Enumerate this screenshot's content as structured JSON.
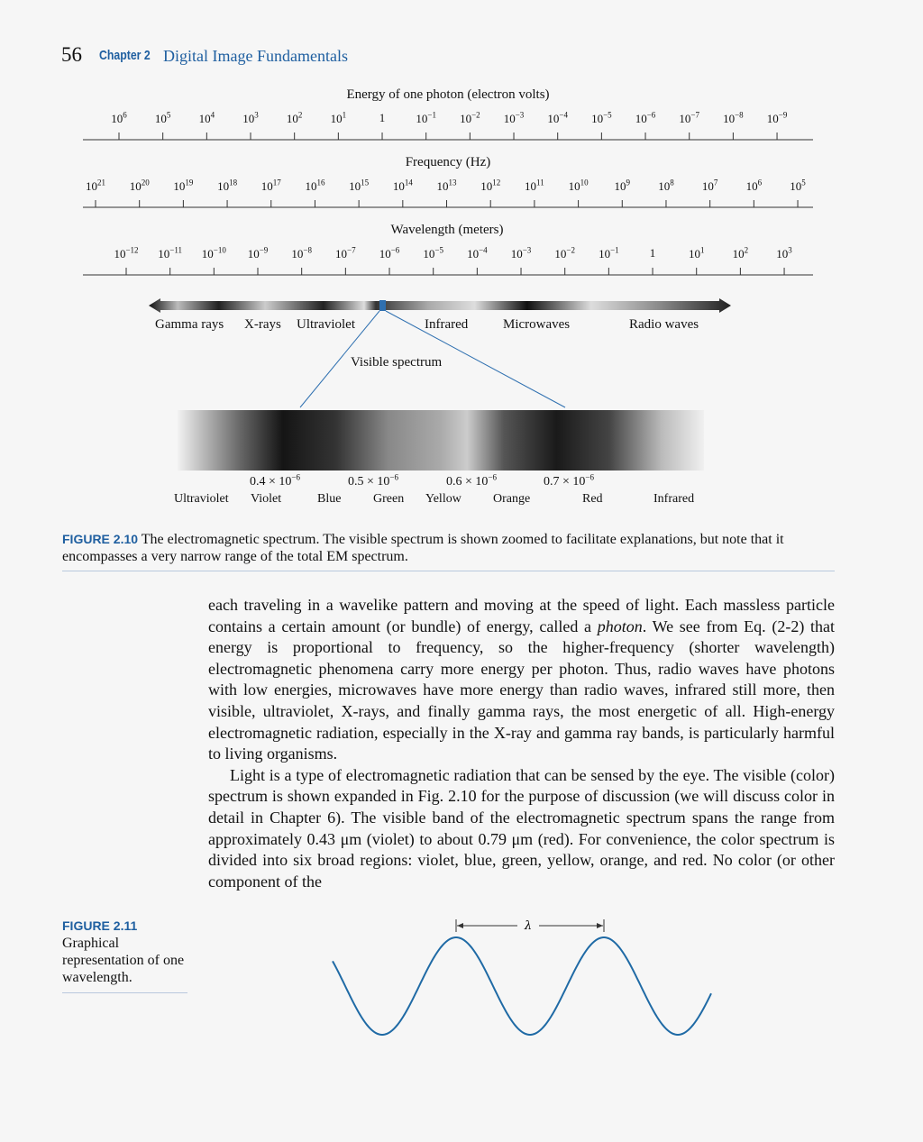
{
  "header": {
    "page_number": "56",
    "chapter": "Chapter 2",
    "title": "Digital Image Fundamentals"
  },
  "figure_2_10": {
    "energy": {
      "title": "Energy of one photon (electron volts)",
      "ticks": [
        "10^6",
        "10^5",
        "10^4",
        "10^3",
        "10^2",
        "10^1",
        "1",
        "10^−1",
        "10^−2",
        "10^−3",
        "10^−4",
        "10^−5",
        "10^−6",
        "10^−7",
        "10^−8",
        "10^−9"
      ]
    },
    "frequency": {
      "title": "Frequency (Hz)",
      "ticks": [
        "10^21",
        "10^20",
        "10^19",
        "10^18",
        "10^17",
        "10^16",
        "10^15",
        "10^14",
        "10^13",
        "10^12",
        "10^11",
        "10^10",
        "10^9",
        "10^8",
        "10^7",
        "10^6",
        "10^5"
      ]
    },
    "wavelength": {
      "title": "Wavelength (meters)",
      "ticks": [
        "10^−12",
        "10^−11",
        "10^−10",
        "10^−9",
        "10^−8",
        "10^−7",
        "10^−6",
        "10^−5",
        "10^−4",
        "10^−3",
        "10^−2",
        "10^−1",
        "1",
        "10^1",
        "10^2",
        "10^3"
      ]
    },
    "bands": [
      "Gamma rays",
      "X-rays",
      "Ultraviolet",
      "Infrared",
      "Microwaves",
      "Radio waves"
    ],
    "visible_label": "Visible spectrum",
    "visible_wavelengths": [
      "0.4 × 10^−6",
      "0.5 × 10^−6",
      "0.6 × 10^−6",
      "0.7 × 10^−6"
    ],
    "visible_colors": [
      "Ultraviolet",
      "Violet",
      "Blue",
      "Green",
      "Yellow",
      "Orange",
      "Red",
      "Infrared"
    ],
    "caption_label": "FIGURE 2.10",
    "caption_text": "The electromagnetic spectrum. The visible spectrum is shown zoomed to facilitate explanations, but note that it encompasses a very narrow range of the total EM spectrum."
  },
  "body": {
    "p1_a": "each traveling in a wavelike pattern and moving at the speed of light. Each massless particle contains a certain amount (or bundle) of energy, called a ",
    "p1_em": "photon",
    "p1_b": ". We see from Eq. (2-2) that energy is proportional to frequency, so the higher-frequency (shorter wavelength) electromagnetic phenomena carry more energy per photon. Thus, radio waves have photons with low energies, microwaves have more energy than radio waves, infrared still more, then visible, ultraviolet, X-rays, and finally gamma rays, the most energetic of all. High-energy electromagnetic radiation, especially in the X-ray and gamma ray bands, is particularly harmful to living organisms.",
    "p2": "Light is a type of electromagnetic radiation that can be sensed by the eye. The visible (color) spectrum is shown expanded in Fig. 2.10 for the purpose of discussion (we will discuss color in detail in Chapter 6). The visible band of the electromagnetic spectrum spans the range from approximately 0.43 μm (violet) to about 0.79 μm (red). For convenience, the color spectrum is divided into six broad regions: violet, blue, green, yellow, orange, and red. No color (or other component of the"
  },
  "figure_2_11": {
    "label": "FIGURE 2.11",
    "caption": "Graphical representation of one wavelength.",
    "lambda": "λ"
  },
  "colors": {
    "accent": "#1f5fa0",
    "wave": "#1f6aa5"
  }
}
